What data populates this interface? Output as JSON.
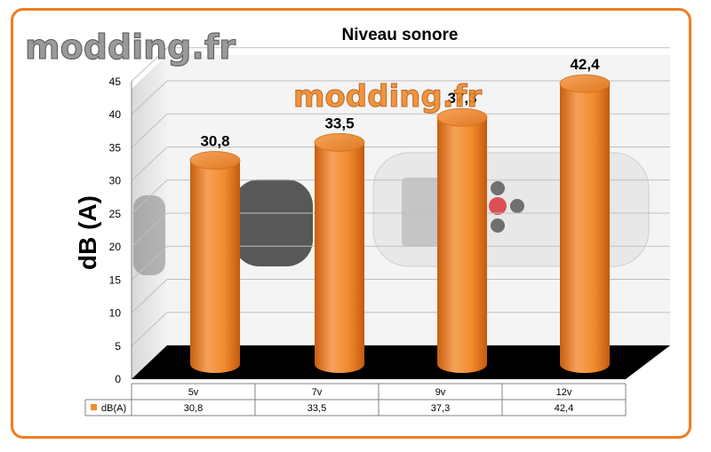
{
  "watermark": {
    "text": "modding.fr"
  },
  "chart_data": {
    "type": "bar",
    "title": "Niveau sonore",
    "ylabel": "dB (A)",
    "xlabel": "",
    "categories": [
      "5v",
      "7v",
      "9v",
      "12v"
    ],
    "series": [
      {
        "name": "dB(A)",
        "values": [
          30.8,
          33.5,
          37.3,
          42.4
        ],
        "color": "#f28c2e"
      }
    ],
    "data_labels": [
      "30,8",
      "33,5",
      "37,3",
      "42,4"
    ],
    "table_values": [
      "30,8",
      "33,5",
      "37,3",
      "42,4"
    ],
    "ylim": [
      0,
      45
    ],
    "yticks": [
      0,
      5,
      10,
      15,
      20,
      25,
      30,
      35,
      40,
      45
    ],
    "grid": true,
    "legend": "data-table",
    "colors": {
      "frame": "#f07d1f",
      "bar": "#f28c2e",
      "floor": "#000000",
      "grid": "#bfbfbf"
    }
  }
}
